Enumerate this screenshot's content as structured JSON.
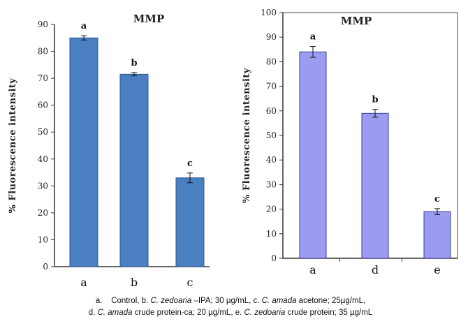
{
  "caption": {
    "line1": [
      "a.",
      "Control, b. ",
      "C. zedoaria",
      " –IPA; 30 µg/mL, c. ",
      "C.  amada",
      " acetone; 25µg/mL,"
    ],
    "line2": [
      "d. ",
      "C.  amada",
      " crude protein-ca; 20 µg/mL, e. ",
      "C. zedoaria",
      " crude protein; 35 µg/mL"
    ]
  },
  "chart_data": [
    {
      "type": "bar",
      "title": "MMP",
      "ylabel": "% Fluorescence intensity",
      "xlabel": "",
      "categories": [
        "a",
        "b",
        "c"
      ],
      "values": [
        85,
        71.5,
        33
      ],
      "errors": [
        0.8,
        0.6,
        1.8
      ],
      "significance": [
        "a",
        "b",
        "c"
      ],
      "ylim": [
        0,
        90
      ],
      "yticks": [
        "0",
        "10",
        "20",
        "30",
        "40",
        "50",
        "60",
        "70",
        "80",
        "90"
      ],
      "bar_color": "#4a7fc1",
      "grid": false
    },
    {
      "type": "bar",
      "title": "MMP",
      "ylabel": "% Fluorescence intensity",
      "xlabel": "",
      "categories": [
        "a",
        "d",
        "e"
      ],
      "values": [
        84,
        59,
        19
      ],
      "errors": [
        2.2,
        1.6,
        1.2
      ],
      "significance": [
        "a",
        "b",
        "c"
      ],
      "ylim": [
        0,
        100
      ],
      "yticks": [
        "0",
        "10",
        "20",
        "30",
        "40",
        "50",
        "60",
        "70",
        "80",
        "90",
        "100"
      ],
      "bar_color": "#9b9cf0",
      "grid": false
    }
  ]
}
